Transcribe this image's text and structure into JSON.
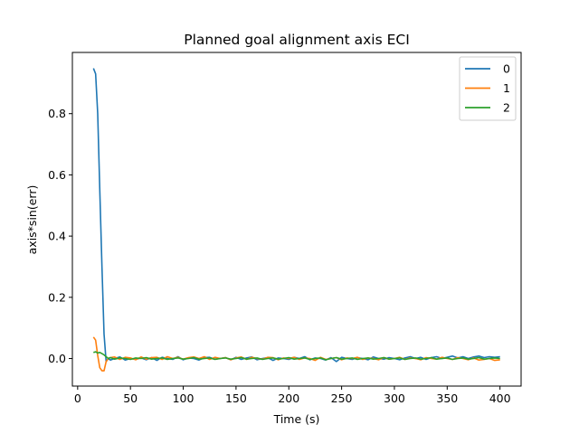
{
  "chart_data": {
    "type": "line",
    "title": "Planned goal alignment axis ECI",
    "xlabel": "Time (s)",
    "ylabel": "axis*sin(err)",
    "xlim": [
      -5,
      420
    ],
    "ylim": [
      -0.09,
      1.0
    ],
    "xticks": [
      0,
      50,
      100,
      150,
      200,
      250,
      300,
      350,
      400
    ],
    "yticks": [
      0.0,
      0.2,
      0.4,
      0.6,
      0.8
    ],
    "ytick_labels": [
      "0.0",
      "0.2",
      "0.4",
      "0.6",
      "0.8"
    ],
    "grid": false,
    "legend_position": "top-right",
    "series": [
      {
        "name": "0",
        "color": "#1f77b4",
        "x": [
          15,
          17,
          19,
          21,
          23,
          25,
          27,
          29,
          31,
          35,
          40,
          45,
          50,
          55,
          60,
          65,
          70,
          75,
          80,
          85,
          90,
          95,
          100,
          105,
          110,
          115,
          120,
          125,
          130,
          135,
          140,
          145,
          150,
          155,
          160,
          165,
          170,
          175,
          180,
          185,
          190,
          195,
          200,
          205,
          210,
          215,
          220,
          225,
          230,
          235,
          240,
          245,
          250,
          255,
          260,
          265,
          270,
          275,
          280,
          285,
          290,
          295,
          300,
          305,
          310,
          315,
          320,
          325,
          330,
          335,
          340,
          345,
          350,
          355,
          360,
          365,
          370,
          375,
          380,
          385,
          390,
          395,
          400
        ],
        "y": [
          0.948,
          0.93,
          0.8,
          0.55,
          0.3,
          0.08,
          -0.01,
          0.0,
          -0.005,
          0.0,
          0.005,
          -0.005,
          0.0,
          -0.003,
          0.002,
          -0.004,
          0.003,
          -0.006,
          0.004,
          0.0,
          -0.003,
          0.006,
          -0.004,
          0.002,
          0.0,
          -0.005,
          0.003,
          0.004,
          -0.002,
          0.0,
          0.003,
          -0.004,
          0.004,
          -0.003,
          0.002,
          0.005,
          -0.004,
          0.0,
          0.003,
          -0.006,
          0.002,
          0.0,
          -0.003,
          0.004,
          0.0,
          0.006,
          -0.004,
          0.002,
          0.0,
          -0.005,
          0.003,
          -0.01,
          0.004,
          0.0,
          -0.003,
          0.003,
          0.0,
          -0.004,
          0.005,
          0.0,
          -0.002,
          0.003,
          0.0,
          -0.004,
          0.002,
          0.006,
          0.0,
          0.004,
          -0.003,
          0.003,
          0.006,
          0.0,
          0.004,
          0.008,
          0.002,
          0.006,
          0.0,
          0.005,
          0.008,
          0.003,
          0.006,
          0.004,
          0.006
        ]
      },
      {
        "name": "1",
        "color": "#ff7f0e",
        "x": [
          15,
          17,
          19,
          21,
          23,
          25,
          27,
          29,
          31,
          35,
          40,
          45,
          50,
          55,
          60,
          65,
          70,
          75,
          80,
          85,
          90,
          95,
          100,
          105,
          110,
          115,
          120,
          125,
          130,
          135,
          140,
          145,
          150,
          155,
          160,
          165,
          170,
          175,
          180,
          185,
          190,
          195,
          200,
          205,
          210,
          215,
          220,
          225,
          230,
          235,
          240,
          245,
          250,
          255,
          260,
          265,
          270,
          275,
          280,
          285,
          290,
          295,
          300,
          305,
          310,
          315,
          320,
          325,
          330,
          335,
          340,
          345,
          350,
          355,
          360,
          365,
          370,
          375,
          380,
          385,
          390,
          395,
          400
        ],
        "y": [
          0.07,
          0.06,
          0.01,
          -0.03,
          -0.04,
          -0.04,
          -0.01,
          0.0,
          0.003,
          0.005,
          -0.003,
          0.004,
          0.002,
          -0.004,
          0.005,
          -0.002,
          0.003,
          0.004,
          -0.003,
          0.006,
          0.0,
          0.004,
          -0.002,
          0.003,
          0.005,
          0.0,
          0.006,
          -0.003,
          0.004,
          0.0,
          0.003,
          -0.004,
          0.002,
          0.005,
          -0.003,
          0.004,
          0.0,
          -0.002,
          0.004,
          0.003,
          -0.004,
          0.002,
          0.0,
          0.004,
          -0.003,
          0.002,
          0.0,
          -0.006,
          0.004,
          -0.003,
          0.0,
          0.003,
          -0.004,
          0.002,
          0.0,
          0.004,
          -0.003,
          0.002,
          0.0,
          -0.004,
          0.003,
          -0.002,
          0.0,
          0.004,
          -0.003,
          0.002,
          0.0,
          -0.004,
          0.003,
          0.0,
          -0.002,
          0.004,
          0.0,
          -0.003,
          0.003,
          0.0,
          -0.004,
          0.002,
          -0.005,
          -0.003,
          0.0,
          -0.006,
          -0.004
        ]
      },
      {
        "name": "2",
        "color": "#2ca02c",
        "x": [
          15,
          17,
          19,
          21,
          23,
          25,
          27,
          29,
          31,
          35,
          40,
          45,
          50,
          55,
          60,
          65,
          70,
          75,
          80,
          85,
          90,
          95,
          100,
          105,
          110,
          115,
          120,
          125,
          130,
          135,
          140,
          145,
          150,
          155,
          160,
          165,
          170,
          175,
          180,
          185,
          190,
          195,
          200,
          205,
          210,
          215,
          220,
          225,
          230,
          235,
          240,
          245,
          250,
          255,
          260,
          265,
          270,
          275,
          280,
          285,
          290,
          295,
          300,
          305,
          310,
          315,
          320,
          325,
          330,
          335,
          340,
          345,
          350,
          355,
          360,
          365,
          370,
          375,
          380,
          385,
          390,
          395,
          400
        ],
        "y": [
          0.02,
          0.022,
          0.018,
          0.02,
          0.016,
          0.012,
          0.006,
          0.0,
          0.003,
          -0.002,
          0.002,
          0.0,
          -0.003,
          0.002,
          0.0,
          0.003,
          -0.002,
          0.0,
          0.002,
          -0.003,
          0.0,
          0.002,
          -0.002,
          0.0,
          0.003,
          -0.002,
          0.0,
          0.002,
          -0.003,
          0.0,
          0.002,
          -0.002,
          0.0,
          0.003,
          -0.002,
          0.0,
          0.002,
          -0.003,
          0.0,
          0.002,
          -0.002,
          0.0,
          0.003,
          -0.002,
          0.0,
          0.002,
          -0.003,
          0.0,
          0.002,
          -0.004,
          0.0,
          0.003,
          -0.002,
          0.0,
          0.002,
          -0.003,
          0.0,
          0.002,
          -0.002,
          0.0,
          0.003,
          -0.002,
          0.0,
          0.002,
          -0.003,
          0.0,
          0.002,
          -0.002,
          0.0,
          0.003,
          -0.002,
          0.0,
          0.002,
          -0.003,
          0.0,
          0.002,
          -0.002,
          0.0,
          0.003,
          -0.002,
          0.0,
          0.002,
          0.0
        ]
      }
    ]
  }
}
